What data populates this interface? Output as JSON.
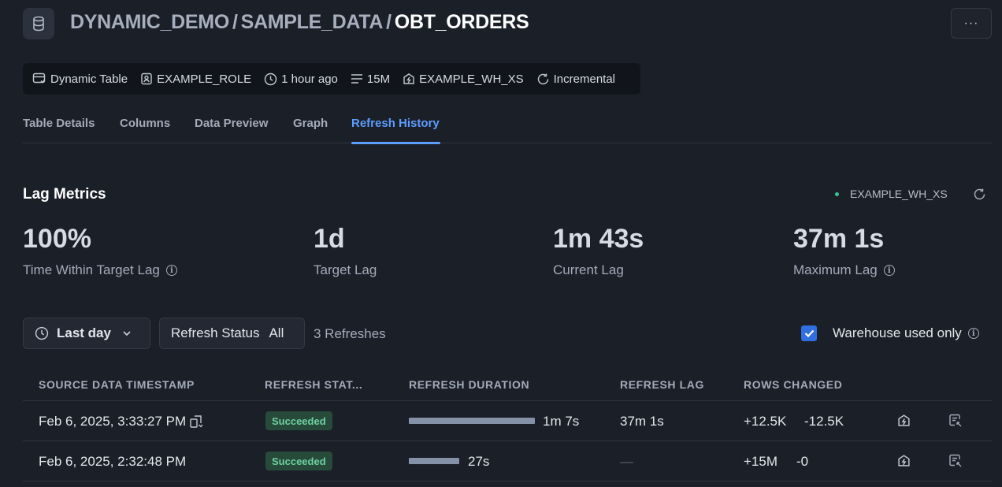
{
  "header": {
    "breadcrumb": [
      "DYNAMIC_DEMO",
      "SAMPLE_DATA"
    ],
    "separator": "/",
    "current": "OBT_ORDERS",
    "more_label": "···"
  },
  "meta": {
    "type": "Dynamic Table",
    "role": "EXAMPLE_ROLE",
    "updated": "1 hour ago",
    "rows": "15M",
    "warehouse": "EXAMPLE_WH_XS",
    "mode": "Incremental"
  },
  "tabs": [
    {
      "label": "Table Details",
      "active": false
    },
    {
      "label": "Columns",
      "active": false
    },
    {
      "label": "Data Preview",
      "active": false
    },
    {
      "label": "Graph",
      "active": false
    },
    {
      "label": "Refresh History",
      "active": true
    }
  ],
  "lag_metrics": {
    "title": "Lag Metrics",
    "warehouse": "EXAMPLE_WH_XS",
    "status_color": "#3cc19a",
    "metrics": [
      {
        "value": "100%",
        "label": "Time Within Target Lag",
        "info": true
      },
      {
        "value": "1d",
        "label": "Target Lag",
        "info": false
      },
      {
        "value": "1m 43s",
        "label": "Current Lag",
        "info": false
      },
      {
        "value": "37m 1s",
        "label": "Maximum Lag",
        "info": true
      }
    ]
  },
  "filters": {
    "time_range": "Last day",
    "status_label": "Refresh Status",
    "status_value": "All",
    "refresh_count": "3 Refreshes",
    "warehouse_only_label": "Warehouse used only",
    "warehouse_only_checked": true
  },
  "table": {
    "columns": [
      "SOURCE DATA TIMESTAMP",
      "REFRESH STAT...",
      "REFRESH DURATION",
      "REFRESH LAG",
      "ROWS CHANGED"
    ],
    "rows": [
      {
        "timestamp": "Feb 6, 2025, 3:33:27 PM",
        "status": "Succeeded",
        "duration": "1m 7s",
        "duration_fraction": 1.0,
        "lag": "37m 1s",
        "rows_added": "+12.5K",
        "rows_removed": "-12.5K"
      },
      {
        "timestamp": "Feb 6, 2025, 2:32:48 PM",
        "status": "Succeeded",
        "duration": "27s",
        "duration_fraction": 0.4,
        "lag": "—",
        "rows_added": "+15M",
        "rows_removed": "-0"
      }
    ]
  }
}
